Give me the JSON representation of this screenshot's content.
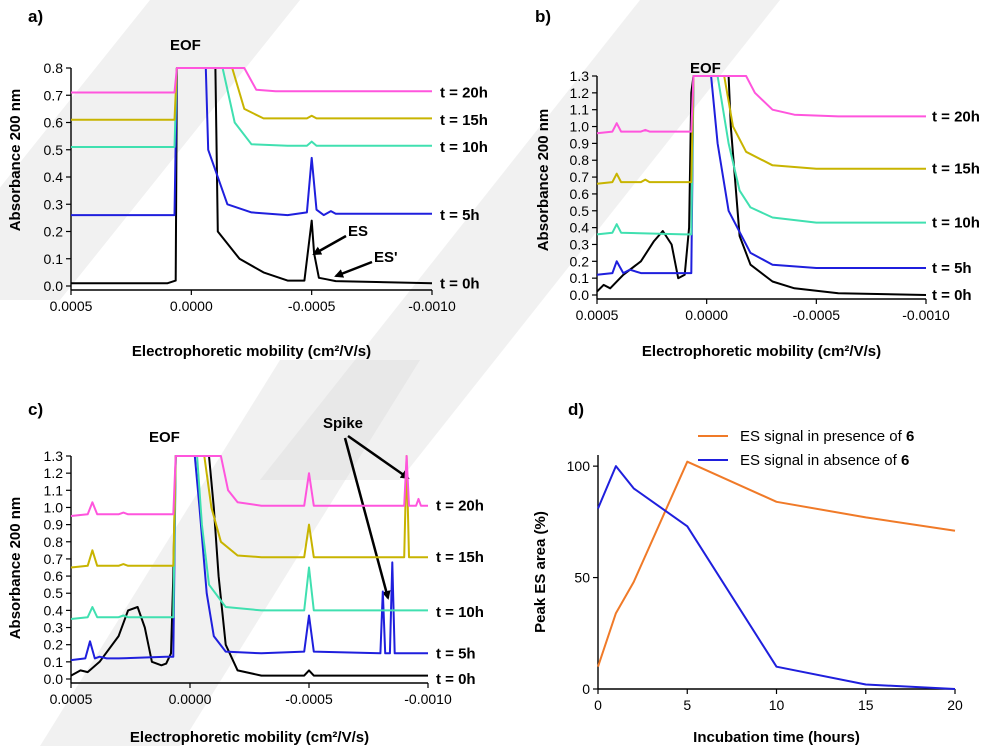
{
  "panels": {
    "a": {
      "label": "a)",
      "eof": "EOF",
      "es": "ES",
      "es_prime": "ES'"
    },
    "b": {
      "label": "b)",
      "eof": "EOF"
    },
    "c": {
      "label": "c)",
      "eof": "EOF",
      "spike": "Spike"
    },
    "d": {
      "label": "d)"
    }
  },
  "chart_data": [
    {
      "id": "a",
      "type": "line",
      "xlabel": "Electrophoretic mobility (cm²/V/s)",
      "ylabel": "Absorbance 200 nm",
      "xlim": [
        0.0005,
        -0.001
      ],
      "ylim": [
        0,
        0.8
      ],
      "xticks": [
        0.0005,
        0.0,
        -0.0005,
        -0.001
      ],
      "xtick_labels": [
        "0.0005",
        "0.0000",
        "-0.0005",
        "-0.0010"
      ],
      "yticks": [
        0,
        0.1,
        0.2,
        0.3,
        0.4,
        0.5,
        0.6,
        0.7,
        0.8
      ],
      "ytick_labels": [
        "0.0",
        "0.1",
        "0.2",
        "0.3",
        "0.4",
        "0.5",
        "0.6",
        "0.7",
        "0.8"
      ],
      "series": [
        {
          "name": "t = 0h",
          "color": "#000000",
          "label_y": 0.01,
          "x": [
            0.0005,
            0.0001,
            6.5e-05,
            6e-05,
            2e-05,
            0.0,
            -0.0001,
            -0.00011,
            -0.0002,
            -0.0003,
            -0.0004,
            -0.00047,
            -0.0005,
            -0.00051,
            -0.00053,
            -0.00056,
            -0.0006,
            -0.001
          ],
          "y": [
            0.01,
            0.01,
            0.02,
            0.8,
            0.8,
            0.8,
            0.8,
            0.2,
            0.1,
            0.05,
            0.02,
            0.02,
            0.24,
            0.12,
            0.03,
            0.025,
            0.018,
            0.01
          ]
        },
        {
          "name": "t = 5h",
          "color": "#1f1fdd",
          "label_y": 0.26,
          "x": [
            0.0005,
            0.0001,
            7e-05,
            6e-05,
            0.0,
            -6e-05,
            -7e-05,
            -0.00015,
            -0.00025,
            -0.0004,
            -0.00048,
            -0.0005,
            -0.00052,
            -0.00055,
            -0.00058,
            -0.0006,
            -0.001
          ],
          "y": [
            0.26,
            0.26,
            0.26,
            0.8,
            0.8,
            0.8,
            0.5,
            0.3,
            0.27,
            0.26,
            0.27,
            0.47,
            0.28,
            0.26,
            0.275,
            0.265,
            0.265
          ]
        },
        {
          "name": "t = 10h",
          "color": "#40e0b0",
          "label_y": 0.51,
          "x": [
            0.0005,
            0.0001,
            7e-05,
            6e-05,
            -0.00013,
            -0.00018,
            -0.00025,
            -0.0004,
            -0.00048,
            -0.0005,
            -0.00052,
            -0.001
          ],
          "y": [
            0.51,
            0.51,
            0.51,
            0.8,
            0.8,
            0.6,
            0.52,
            0.515,
            0.515,
            0.53,
            0.515,
            0.515
          ]
        },
        {
          "name": "t = 15h",
          "color": "#c8b400",
          "label_y": 0.61,
          "x": [
            0.0005,
            0.0001,
            7e-05,
            6e-05,
            -0.00017,
            -0.00022,
            -0.0003,
            -0.00048,
            -0.0005,
            -0.00052,
            -0.001
          ],
          "y": [
            0.61,
            0.61,
            0.61,
            0.8,
            0.8,
            0.65,
            0.615,
            0.615,
            0.625,
            0.615,
            0.615
          ]
        },
        {
          "name": "t = 20h",
          "color": "#ff55dd",
          "label_y": 0.71,
          "x": [
            0.0005,
            0.0001,
            7e-05,
            6e-05,
            -0.00022,
            -0.00027,
            -0.00035,
            -0.001
          ],
          "y": [
            0.71,
            0.71,
            0.71,
            0.8,
            0.8,
            0.72,
            0.715,
            0.715
          ]
        }
      ]
    },
    {
      "id": "b",
      "type": "line",
      "xlabel": "Electrophoretic mobility (cm²/V/s)",
      "ylabel": "Absorbance 200 nm",
      "xlim": [
        0.0005,
        -0.001
      ],
      "ylim": [
        0,
        1.3
      ],
      "xticks": [
        0.0005,
        0.0,
        -0.0005,
        -0.001
      ],
      "xtick_labels": [
        "0.0005",
        "0.0000",
        "-0.0005",
        "-0.0010"
      ],
      "yticks": [
        0,
        0.1,
        0.2,
        0.3,
        0.4,
        0.5,
        0.6,
        0.7,
        0.8,
        0.9,
        1.0,
        1.1,
        1.2,
        1.3
      ],
      "ytick_labels": [
        "0.0",
        "0.1",
        "0.2",
        "0.3",
        "0.4",
        "0.5",
        "0.6",
        "0.7",
        "0.8",
        "0.9",
        "1.0",
        "1.1",
        "1.2",
        "1.3"
      ],
      "series": [
        {
          "name": "t = 0h",
          "color": "#000000",
          "label_y": 0.0,
          "x": [
            0.0005,
            0.00047,
            0.00044,
            0.00038,
            0.0003,
            0.00024,
            0.0002,
            0.00016,
            0.00013,
            0.0001,
            8e-05,
            7e-05,
            6e-05,
            -0.0001,
            -0.00011,
            -0.00015,
            -0.0002,
            -0.0003,
            -0.0004,
            -0.0006,
            -0.001
          ],
          "y": [
            0.02,
            0.06,
            0.04,
            0.12,
            0.2,
            0.32,
            0.38,
            0.3,
            0.1,
            0.12,
            0.4,
            1.2,
            1.3,
            1.3,
            1.0,
            0.35,
            0.18,
            0.08,
            0.04,
            0.01,
            0.0
          ]
        },
        {
          "name": "t = 5h",
          "color": "#1f1fdd",
          "label_y": 0.16,
          "x": [
            0.0005,
            0.00043,
            0.00041,
            0.00038,
            0.00035,
            0.0003,
            0.0001,
            7e-05,
            6e-05,
            -2e-05,
            -5e-05,
            -0.0001,
            -0.0002,
            -0.0003,
            -0.0005,
            -0.001
          ],
          "y": [
            0.12,
            0.13,
            0.2,
            0.13,
            0.15,
            0.13,
            0.13,
            0.13,
            1.3,
            1.3,
            0.9,
            0.5,
            0.25,
            0.18,
            0.16,
            0.16
          ]
        },
        {
          "name": "t = 10h",
          "color": "#40e0b0",
          "label_y": 0.43,
          "x": [
            0.0005,
            0.00043,
            0.00041,
            0.00039,
            0.0001,
            7e-05,
            6e-05,
            -5e-05,
            -0.0001,
            -0.00015,
            -0.0002,
            -0.0003,
            -0.0005,
            -0.001
          ],
          "y": [
            0.36,
            0.37,
            0.42,
            0.37,
            0.36,
            0.36,
            1.3,
            1.3,
            0.9,
            0.62,
            0.52,
            0.46,
            0.43,
            0.43
          ]
        },
        {
          "name": "t = 15h",
          "color": "#c8b400",
          "label_y": 0.75,
          "x": [
            0.0005,
            0.00043,
            0.00041,
            0.00039,
            0.0003,
            0.00028,
            0.00026,
            0.0001,
            7e-05,
            6e-05,
            -8e-05,
            -0.00012,
            -0.00018,
            -0.0003,
            -0.0005,
            -0.001
          ],
          "y": [
            0.66,
            0.67,
            0.72,
            0.67,
            0.67,
            0.685,
            0.67,
            0.67,
            0.67,
            1.3,
            1.3,
            1.0,
            0.85,
            0.77,
            0.75,
            0.75
          ]
        },
        {
          "name": "t = 20h",
          "color": "#ff55dd",
          "label_y": 1.06,
          "x": [
            0.0005,
            0.00043,
            0.00041,
            0.00039,
            0.0003,
            0.00028,
            0.00026,
            0.0001,
            7e-05,
            6e-05,
            -0.00018,
            -0.00022,
            -0.0003,
            -0.0004,
            -0.0006,
            -0.001
          ],
          "y": [
            0.96,
            0.97,
            1.02,
            0.97,
            0.97,
            0.98,
            0.97,
            0.97,
            0.97,
            1.3,
            1.3,
            1.2,
            1.1,
            1.07,
            1.06,
            1.06
          ]
        }
      ]
    },
    {
      "id": "c",
      "type": "line",
      "xlabel": "Electrophoretic mobility (cm²/V/s)",
      "ylabel": "Absorbance 200 nm",
      "xlim": [
        0.0005,
        -0.001
      ],
      "ylim": [
        0,
        1.3
      ],
      "xticks": [
        0.0005,
        0.0,
        -0.0005,
        -0.001
      ],
      "xtick_labels": [
        "0.0005",
        "0.0000",
        "-0.0005",
        "-0.0010"
      ],
      "yticks": [
        0,
        0.1,
        0.2,
        0.3,
        0.4,
        0.5,
        0.6,
        0.7,
        0.8,
        0.9,
        1.0,
        1.1,
        1.2,
        1.3
      ],
      "ytick_labels": [
        "0.0",
        "0.1",
        "0.2",
        "0.3",
        "0.4",
        "0.5",
        "0.6",
        "0.7",
        "0.8",
        "0.9",
        "1.0",
        "1.1",
        "1.2",
        "1.3"
      ],
      "series": [
        {
          "name": "t = 0h",
          "color": "#000000",
          "label_y": 0.0,
          "x": [
            0.0005,
            0.00046,
            0.00043,
            0.00038,
            0.0003,
            0.00026,
            0.00022,
            0.00019,
            0.00016,
            0.00012,
            0.0001,
            8e-05,
            7e-05,
            6e-05,
            -8e-05,
            -0.0001,
            -0.00012,
            -0.00015,
            -0.0002,
            -0.0003,
            -0.00048,
            -0.0005,
            -0.00052,
            -0.0006,
            -0.001
          ],
          "y": [
            0.02,
            0.05,
            0.04,
            0.1,
            0.25,
            0.4,
            0.42,
            0.3,
            0.1,
            0.08,
            0.09,
            0.15,
            0.6,
            1.3,
            1.3,
            1.0,
            0.6,
            0.2,
            0.05,
            0.02,
            0.02,
            0.05,
            0.02,
            0.02,
            0.02
          ]
        },
        {
          "name": "t = 5h",
          "color": "#1f1fdd",
          "label_y": 0.15,
          "x": [
            0.0005,
            0.00044,
            0.00042,
            0.0004,
            0.00038,
            0.00035,
            0.0003,
            0.0001,
            7e-05,
            6e-05,
            -2e-05,
            -4e-05,
            -7e-05,
            -0.0001,
            -0.00015,
            -0.0003,
            -0.00048,
            -0.0005,
            -0.00052,
            -0.0008,
            -0.00081,
            -0.00082,
            -0.00084,
            -0.00085,
            -0.00086,
            -0.00087,
            -0.001
          ],
          "y": [
            0.11,
            0.12,
            0.22,
            0.12,
            0.13,
            0.12,
            0.12,
            0.13,
            0.13,
            1.3,
            1.3,
            1.0,
            0.5,
            0.25,
            0.16,
            0.15,
            0.16,
            0.37,
            0.16,
            0.15,
            0.51,
            0.15,
            0.15,
            0.68,
            0.15,
            0.15,
            0.15
          ]
        },
        {
          "name": "t = 10h",
          "color": "#40e0b0",
          "label_y": 0.39,
          "x": [
            0.0005,
            0.00043,
            0.00041,
            0.00039,
            0.0003,
            0.00028,
            0.00026,
            0.0001,
            7e-05,
            6e-05,
            -3e-05,
            -5e-05,
            -8e-05,
            -0.00015,
            -0.0003,
            -0.00048,
            -0.0005,
            -0.00052,
            -0.0008,
            -0.001
          ],
          "y": [
            0.35,
            0.36,
            0.42,
            0.36,
            0.36,
            0.37,
            0.36,
            0.36,
            0.36,
            1.3,
            1.3,
            0.9,
            0.55,
            0.42,
            0.4,
            0.4,
            0.65,
            0.4,
            0.4,
            0.4
          ]
        },
        {
          "name": "t = 15h",
          "color": "#c8b400",
          "label_y": 0.71,
          "x": [
            0.0005,
            0.00043,
            0.00041,
            0.00039,
            0.0003,
            0.00028,
            0.00026,
            0.0001,
            7e-05,
            6e-05,
            -6e-05,
            -9e-05,
            -0.00013,
            -0.0002,
            -0.0003,
            -0.00048,
            -0.0005,
            -0.00052,
            -0.0009,
            -0.00091,
            -0.00092,
            -0.001
          ],
          "y": [
            0.65,
            0.66,
            0.75,
            0.66,
            0.66,
            0.67,
            0.66,
            0.66,
            0.66,
            1.3,
            1.3,
            1.0,
            0.8,
            0.72,
            0.71,
            0.71,
            0.9,
            0.71,
            0.71,
            1.3,
            0.71,
            0.71
          ]
        },
        {
          "name": "t = 20h",
          "color": "#ff55dd",
          "label_y": 1.01,
          "x": [
            0.0005,
            0.00043,
            0.00041,
            0.00039,
            0.0003,
            0.00028,
            0.00026,
            0.0001,
            7e-05,
            6e-05,
            -0.00013,
            -0.00016,
            -0.0002,
            -0.0003,
            -0.00048,
            -0.0005,
            -0.00052,
            -0.0009,
            -0.00091,
            -0.00092,
            -0.00095,
            -0.00096,
            -0.00097,
            -0.001
          ],
          "y": [
            0.95,
            0.96,
            1.03,
            0.96,
            0.96,
            0.97,
            0.96,
            0.96,
            0.96,
            1.3,
            1.3,
            1.1,
            1.03,
            1.01,
            1.01,
            1.2,
            1.01,
            1.01,
            1.3,
            1.01,
            1.01,
            1.05,
            1.01,
            1.01
          ]
        }
      ]
    },
    {
      "id": "d",
      "type": "line",
      "xlabel": "Incubation time (hours)",
      "ylabel": "Peak ES area (%)",
      "xlim": [
        0,
        20
      ],
      "ylim": [
        0,
        105
      ],
      "xticks": [
        0,
        5,
        10,
        15,
        20
      ],
      "xtick_labels": [
        "0",
        "5",
        "10",
        "15",
        "20"
      ],
      "yticks": [
        0,
        50,
        100
      ],
      "ytick_labels": [
        "0",
        "50",
        "100"
      ],
      "legend_position": "top-right",
      "series": [
        {
          "name_text": "ES signal in presence of ",
          "name_bold": "6",
          "color": "#f07a28",
          "x": [
            0,
            1,
            2,
            5,
            10,
            15,
            20
          ],
          "y": [
            10,
            34,
            48,
            102,
            84,
            77,
            71
          ]
        },
        {
          "name_text": "ES signal in absence of ",
          "name_bold": "6",
          "color": "#1f1fdd",
          "x": [
            0,
            1,
            2,
            5,
            10,
            15,
            20
          ],
          "y": [
            81,
            100,
            90,
            73,
            10,
            2,
            0
          ]
        }
      ]
    }
  ]
}
